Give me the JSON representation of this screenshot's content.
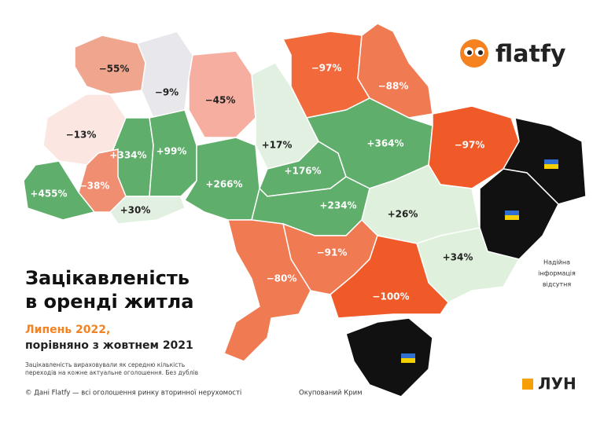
{
  "header": {
    "title_lines": [
      "Зацікавленість",
      "в оренді житла"
    ],
    "period": "Липень 2022,",
    "comparison": "порівняно з жовтнем 2021",
    "note_lines": [
      "Зацікавленість вираховували як середню кількість",
      "переходів на кожне актуальне оголошення. Без дублів"
    ]
  },
  "footer": {
    "source": "© Дані Flatfy — всі оголошення ринку вторинної нерухомості",
    "crimea": "Окупований Крим",
    "no_data_lines": [
      "Надійна",
      "інформація",
      "відсутня"
    ]
  },
  "logos": {
    "flatfy": "flatfy",
    "lun": "ЛУН"
  },
  "regions": [
    {
      "label": "−55%",
      "color": "#f0a58e"
    },
    {
      "label": "−9%",
      "color": "#e8e8ec"
    },
    {
      "label": "−45%",
      "color": "#f5aea0"
    },
    {
      "label": "+17%",
      "color": "#e2f0e2"
    },
    {
      "label": "−97%",
      "color": "#f26a3c"
    },
    {
      "label": "−88%",
      "color": "#f07a52"
    },
    {
      "label": "−13%",
      "color": "#fbe6e1"
    },
    {
      "label": "+334%",
      "color": "#5fae6b"
    },
    {
      "label": "+99%",
      "color": "#5fae6b"
    },
    {
      "label": "+266%",
      "color": "#5fae6b"
    },
    {
      "label": "−38%",
      "color": "#f08e72"
    },
    {
      "label": "+455%",
      "color": "#5fae6b"
    },
    {
      "label": "+30%",
      "color": "#e2f0e2"
    },
    {
      "label": "+176%",
      "color": "#5fae6b"
    },
    {
      "label": "+364%",
      "color": "#5fae6b"
    },
    {
      "label": "+234%",
      "color": "#5fae6b"
    },
    {
      "label": "−97%",
      "color": "#f05a28"
    },
    {
      "label": "+26%",
      "color": "#dff0dc"
    },
    {
      "label": "+34%",
      "color": "#dff0dc"
    },
    {
      "label": "−91%",
      "color": "#f07a52"
    },
    {
      "label": "−80%",
      "color": "#f07a52"
    },
    {
      "label": "−100%",
      "color": "#f05a28"
    }
  ]
}
